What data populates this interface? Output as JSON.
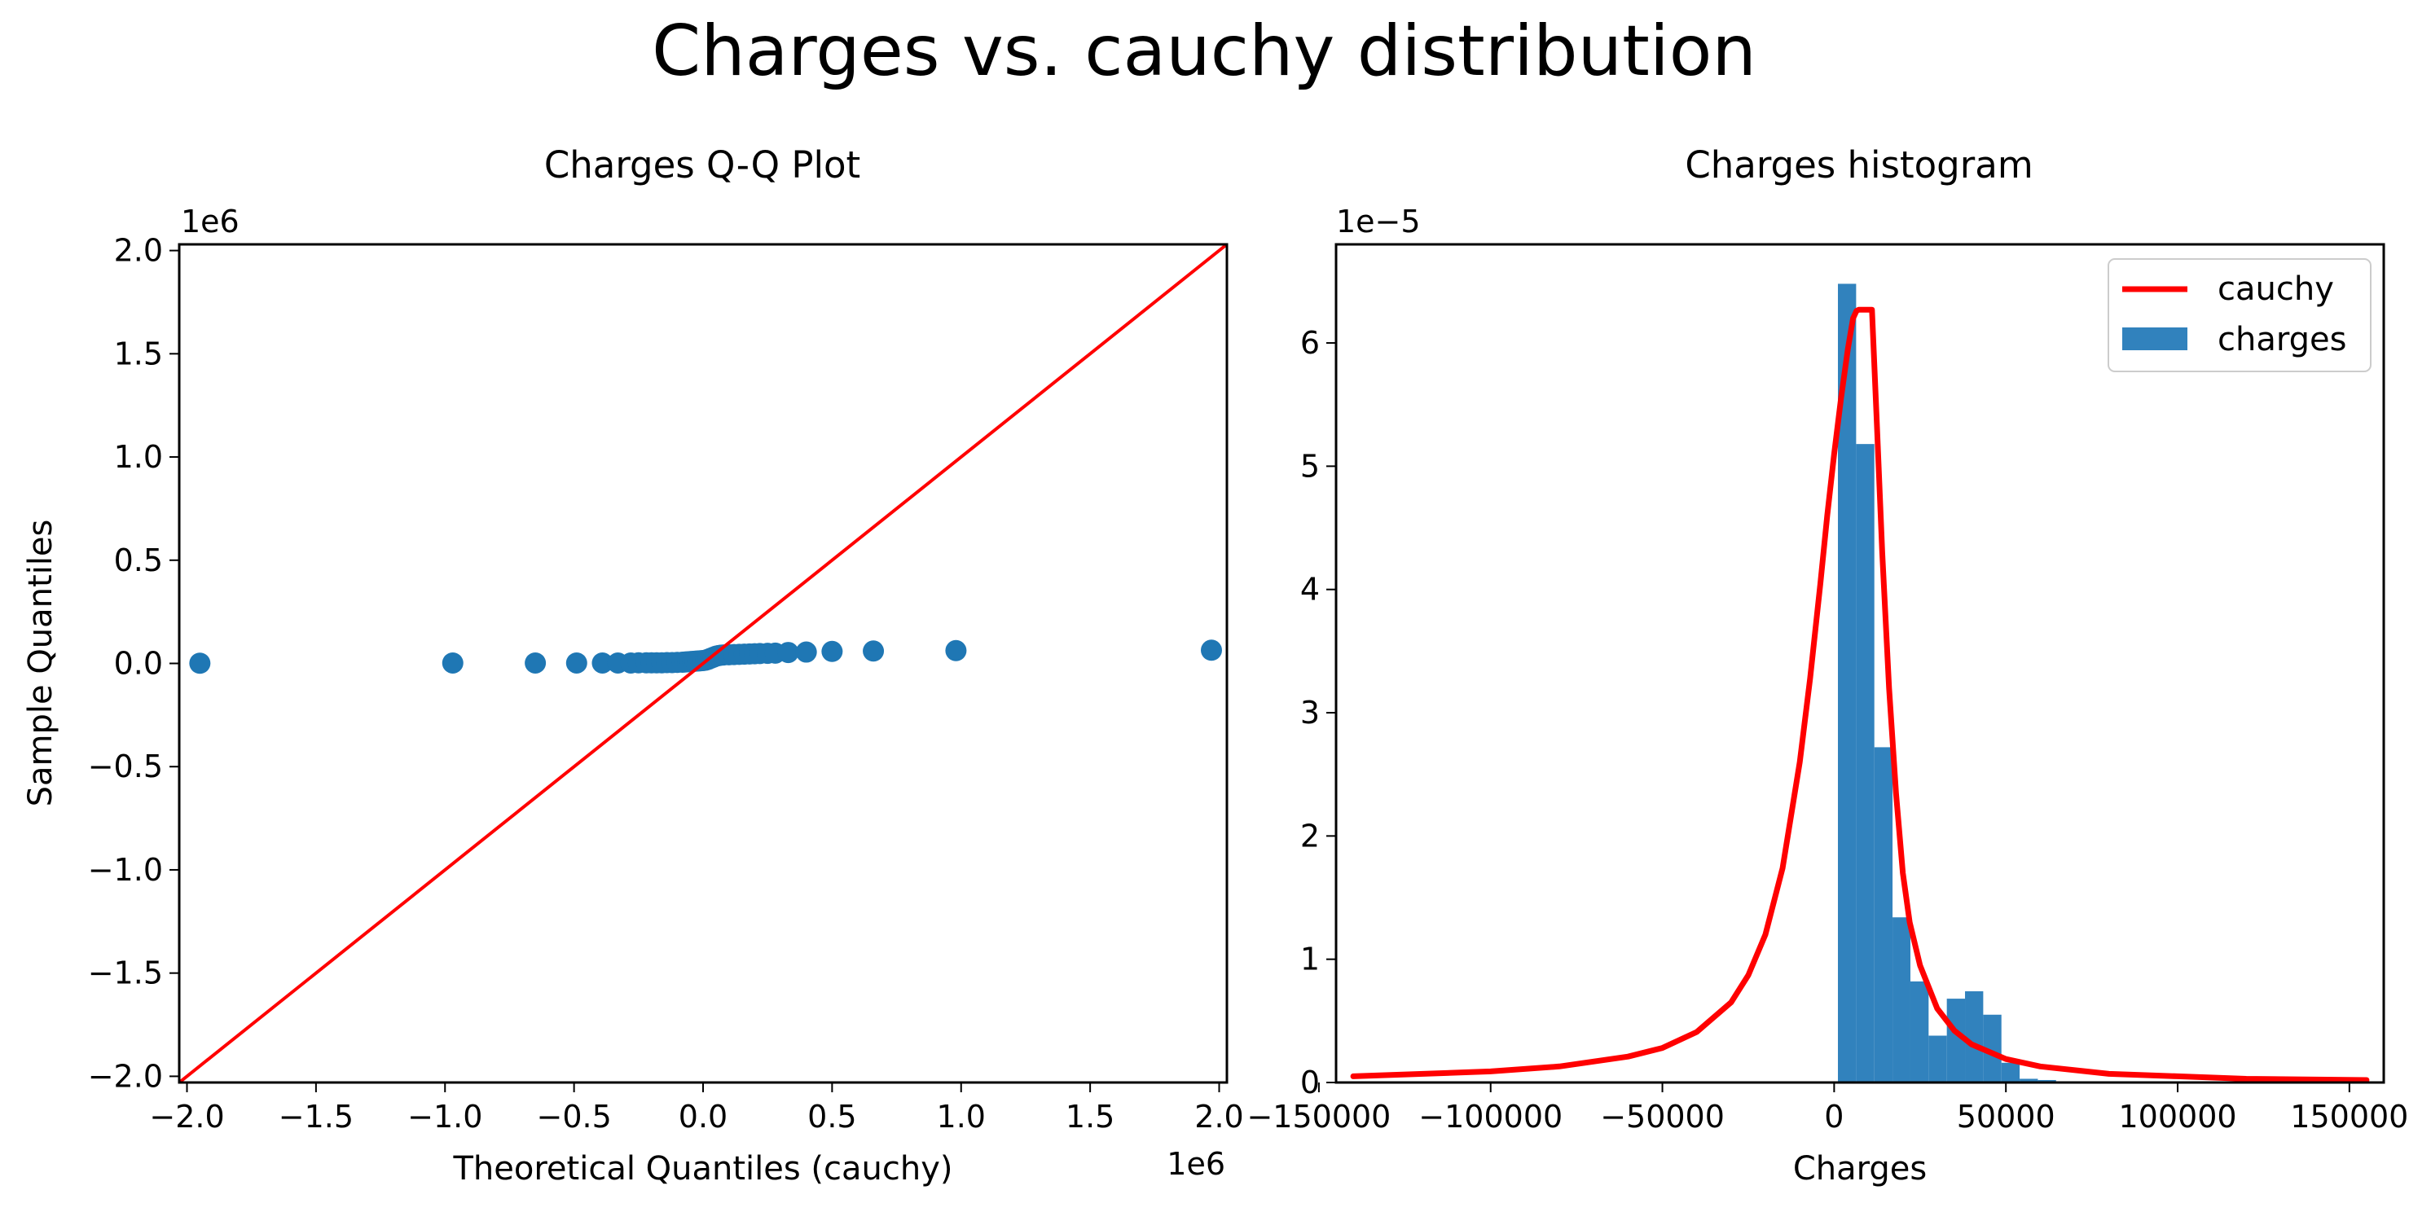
{
  "figure": {
    "suptitle": "Charges vs. cauchy distribution"
  },
  "colors": {
    "points": "#1f77b4",
    "reference_line": "#ff0000",
    "bars": "#3182bd",
    "pdf_line": "#ff0000",
    "axes": "#000000"
  },
  "chart_data": [
    {
      "type": "scatter",
      "title": "Charges Q-Q Plot",
      "xlabel": "Theoretical Quantiles (cauchy)",
      "ylabel": "Sample Quantiles",
      "x_offset_label": "1e6",
      "y_offset_label": "1e6",
      "xlim": [
        -2.03,
        2.03
      ],
      "ylim": [
        -2.03,
        2.03
      ],
      "xticks": [
        -2.0,
        -1.5,
        -1.0,
        -0.5,
        0.0,
        0.5,
        1.0,
        1.5,
        2.0
      ],
      "xtick_labels": [
        "−2.0",
        "−1.5",
        "−1.0",
        "−0.5",
        "0.0",
        "0.5",
        "1.0",
        "1.5",
        "2.0"
      ],
      "yticks": [
        -2.0,
        -1.5,
        -1.0,
        -0.5,
        0.0,
        0.5,
        1.0,
        1.5,
        2.0
      ],
      "ytick_labels": [
        "−2.0",
        "−1.5",
        "−1.0",
        "−0.5",
        "0.0",
        "0.5",
        "1.0",
        "1.5",
        "2.0"
      ],
      "reference_line": {
        "x": [
          -2.03,
          2.03
        ],
        "y": [
          -2.03,
          2.03
        ]
      },
      "points": {
        "x": [
          -1.95,
          -0.97,
          -0.65,
          -0.49,
          -0.39,
          -0.33,
          -0.28,
          -0.25,
          -0.22,
          -0.2,
          -0.18,
          -0.16,
          -0.14,
          -0.12,
          -0.1,
          -0.08,
          -0.07,
          -0.06,
          -0.05,
          -0.04,
          -0.03,
          -0.02,
          -0.01,
          0.0,
          0.01,
          0.02,
          0.03,
          0.04,
          0.05,
          0.06,
          0.07,
          0.08,
          0.1,
          0.12,
          0.14,
          0.16,
          0.18,
          0.2,
          0.22,
          0.25,
          0.28,
          0.33,
          0.4,
          0.5,
          0.66,
          0.98,
          1.97
        ],
        "y": [
          0.001,
          0.002,
          0.002,
          0.002,
          0.002,
          0.002,
          0.002,
          0.003,
          0.003,
          0.003,
          0.003,
          0.003,
          0.004,
          0.004,
          0.005,
          0.006,
          0.007,
          0.008,
          0.009,
          0.01,
          0.011,
          0.012,
          0.013,
          0.014,
          0.016,
          0.02,
          0.025,
          0.03,
          0.035,
          0.038,
          0.04,
          0.041,
          0.042,
          0.043,
          0.044,
          0.045,
          0.046,
          0.047,
          0.048,
          0.049,
          0.05,
          0.053,
          0.055,
          0.058,
          0.06,
          0.062,
          0.064
        ]
      }
    },
    {
      "type": "bar",
      "title": "Charges histogram",
      "xlabel": "Charges",
      "ylabel": "",
      "y_offset_label": "1e−5",
      "xlim": [
        -145000,
        160000
      ],
      "ylim": [
        0,
        6.8
      ],
      "xticks": [
        -150000,
        -100000,
        -50000,
        0,
        50000,
        100000,
        150000
      ],
      "xtick_labels": [
        "−150000",
        "−100000",
        "−50000",
        "0",
        "50000",
        "100000",
        "150000"
      ],
      "yticks": [
        0,
        1,
        2,
        3,
        4,
        5,
        6
      ],
      "ytick_labels": [
        "0",
        "1",
        "2",
        "3",
        "4",
        "5",
        "6"
      ],
      "legend": {
        "position": "upper right",
        "items": [
          "cauchy",
          "charges"
        ]
      },
      "bins": [
        {
          "x0": 1100,
          "x1": 6400,
          "value": 6.48
        },
        {
          "x0": 6400,
          "x1": 11700,
          "value": 5.18
        },
        {
          "x0": 11700,
          "x1": 17000,
          "value": 2.72
        },
        {
          "x0": 17000,
          "x1": 22200,
          "value": 1.34
        },
        {
          "x0": 22200,
          "x1": 27500,
          "value": 0.82
        },
        {
          "x0": 27500,
          "x1": 32800,
          "value": 0.38
        },
        {
          "x0": 32800,
          "x1": 38100,
          "value": 0.68
        },
        {
          "x0": 38100,
          "x1": 43400,
          "value": 0.74
        },
        {
          "x0": 43400,
          "x1": 48700,
          "value": 0.55
        },
        {
          "x0": 48700,
          "x1": 54000,
          "value": 0.16
        },
        {
          "x0": 54000,
          "x1": 59300,
          "value": 0.03
        },
        {
          "x0": 59300,
          "x1": 64600,
          "value": 0.02
        }
      ],
      "pdf_line": {
        "name": "cauchy",
        "x": [
          -140000,
          -100000,
          -80000,
          -60000,
          -50000,
          -40000,
          -30000,
          -25000,
          -20000,
          -15000,
          -10000,
          -7000,
          -4000,
          -2000,
          0,
          2000,
          4000,
          5500,
          6500,
          7200,
          7800,
          8200,
          9000,
          10000,
          11000,
          12500,
          14000,
          16000,
          18000,
          20000,
          22000,
          25000,
          30000,
          35000,
          40000,
          50000,
          60000,
          80000,
          100000,
          120000,
          155000
        ],
        "y": [
          0.05,
          0.09,
          0.13,
          0.21,
          0.28,
          0.41,
          0.65,
          0.87,
          1.2,
          1.74,
          2.6,
          3.28,
          4.05,
          4.6,
          5.1,
          5.55,
          5.95,
          6.2,
          6.26,
          6.27,
          6.27,
          6.27,
          6.27,
          6.27,
          6.27,
          5.3,
          4.3,
          3.2,
          2.35,
          1.7,
          1.3,
          0.95,
          0.6,
          0.42,
          0.31,
          0.19,
          0.13,
          0.07,
          0.05,
          0.03,
          0.02
        ]
      }
    }
  ]
}
